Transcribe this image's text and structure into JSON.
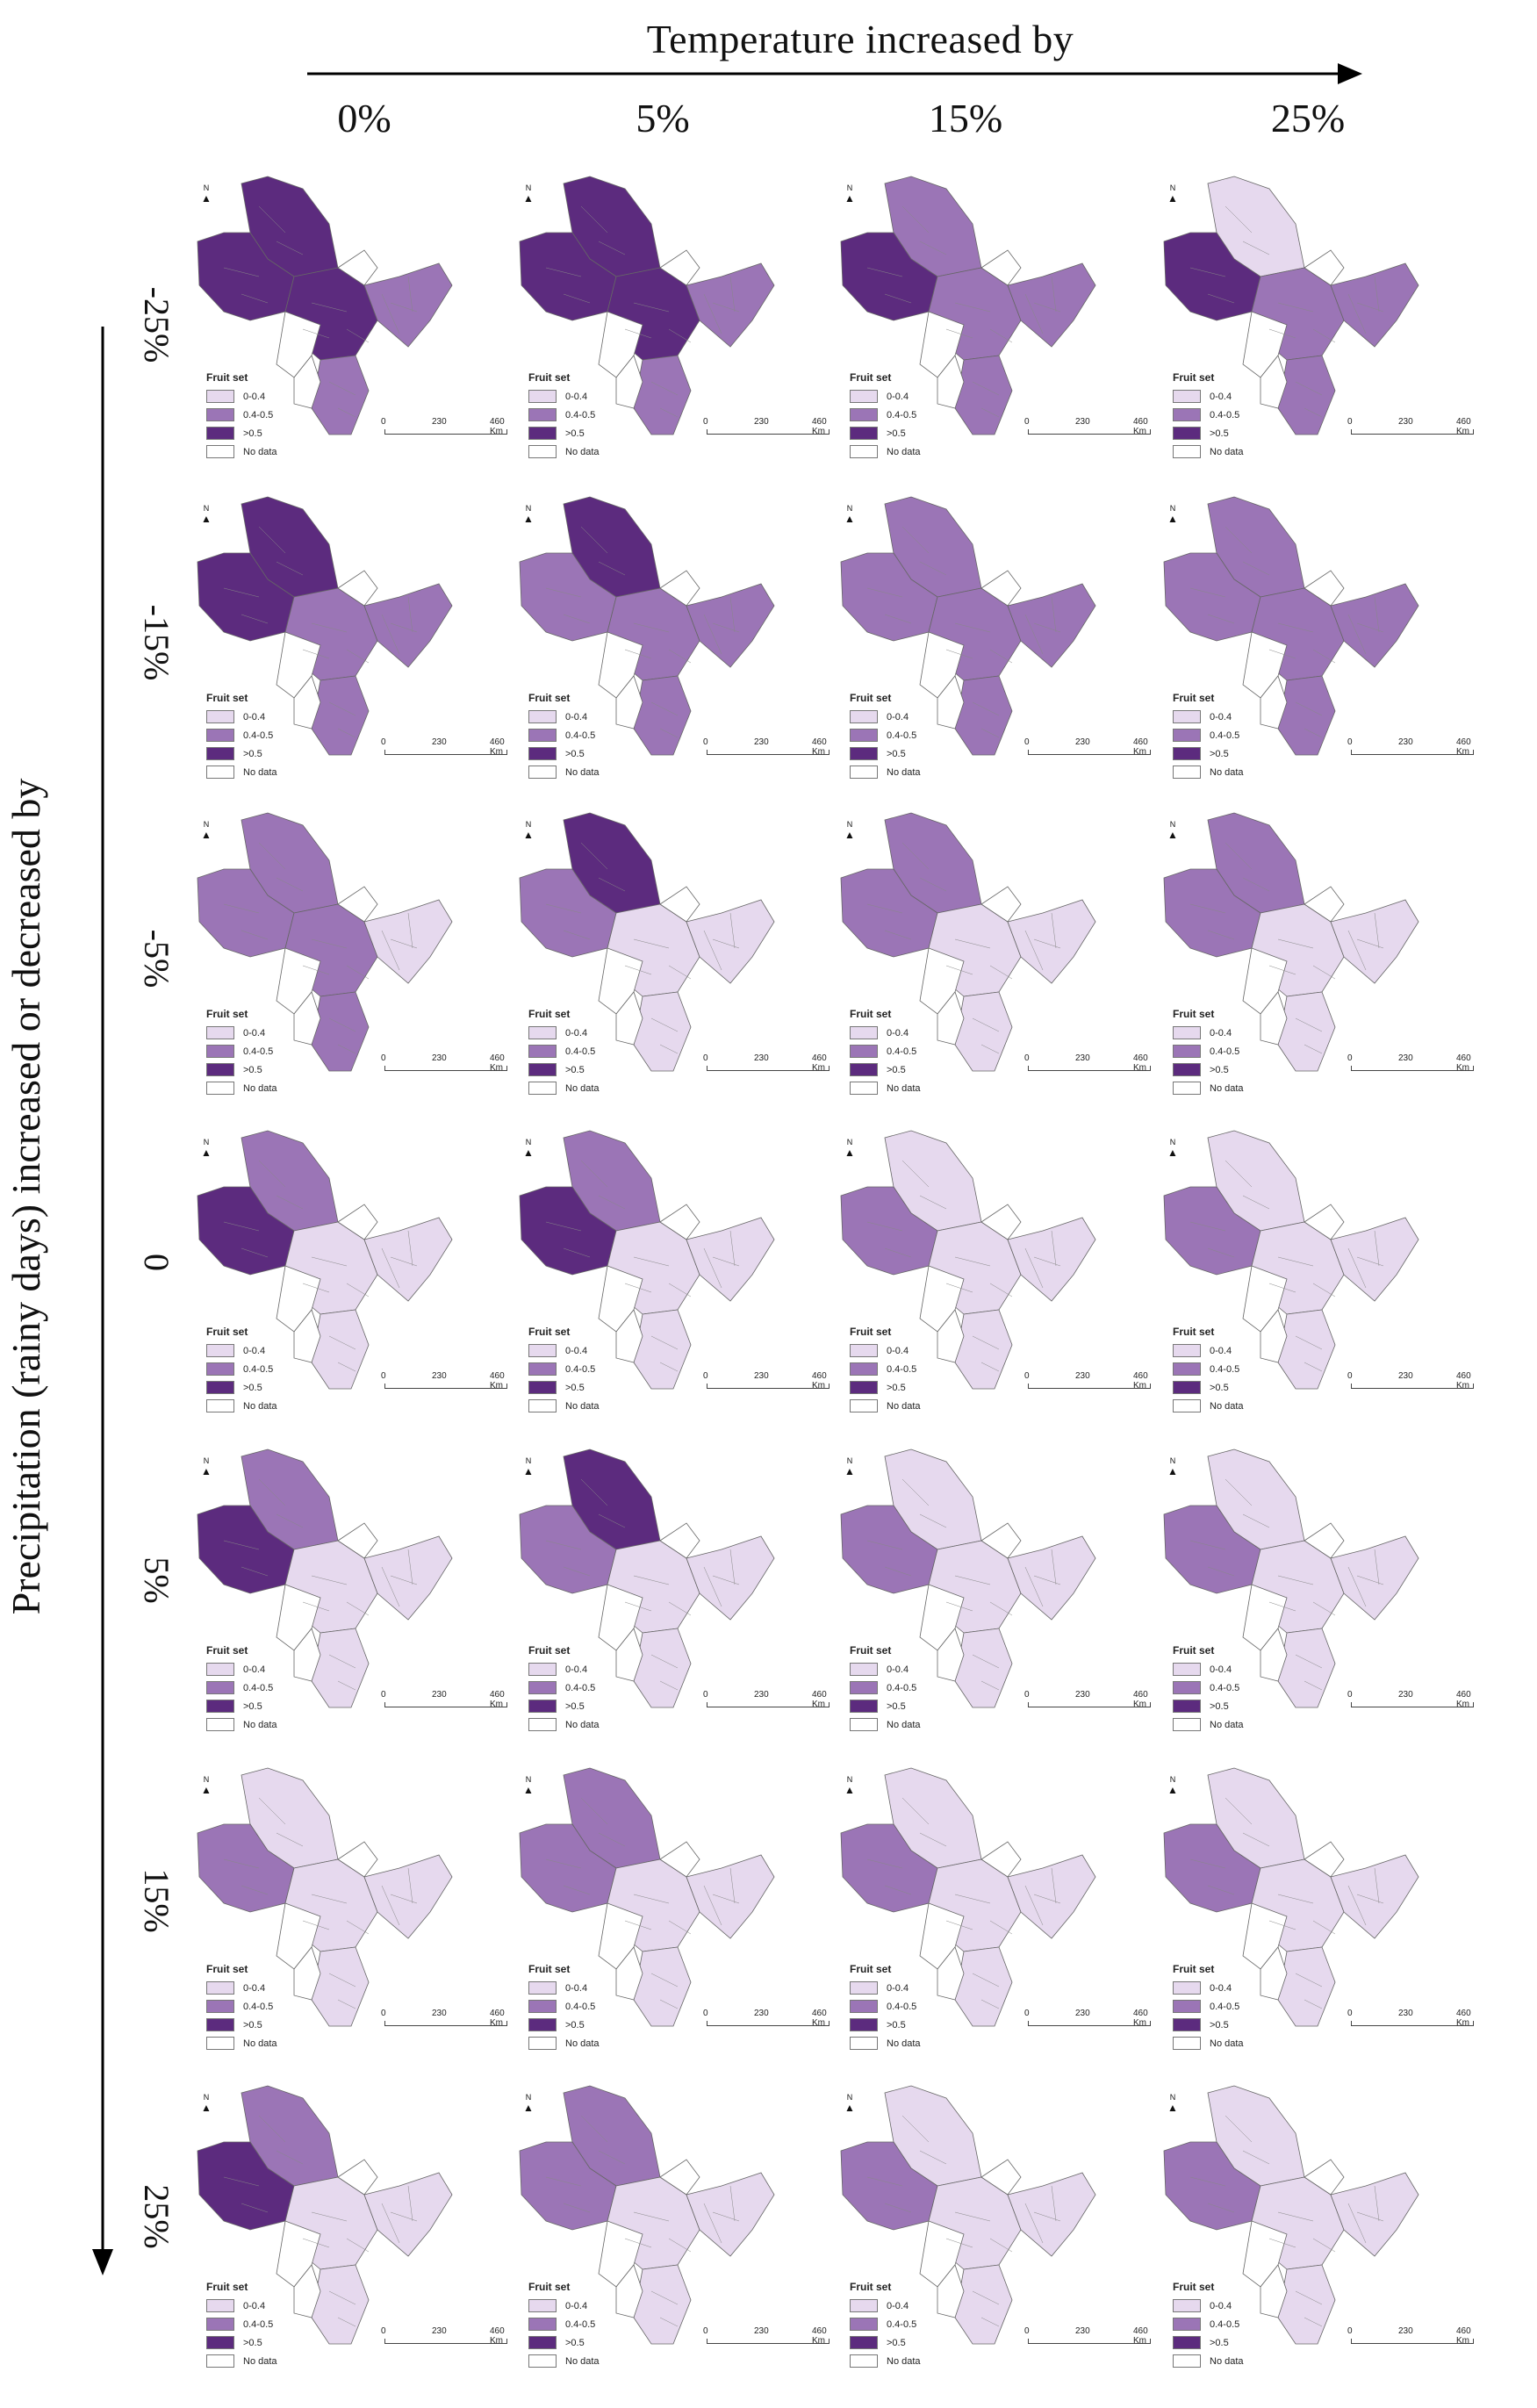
{
  "header": {
    "title": "Temperature increased by",
    "columns": [
      "0%",
      "5%",
      "15%",
      "25%"
    ]
  },
  "side": {
    "title": "Precipitation (rainy days) increased or decreased by",
    "rows": [
      "-25%",
      "-15%",
      "-5%",
      "0",
      "5%",
      "15%",
      "25%"
    ]
  },
  "legend": {
    "title": "Fruit set",
    "classes": [
      "0-0.4",
      "0.4-0.5",
      ">0.5",
      "No data"
    ],
    "colors": [
      "#e6d9ee",
      "#9b75b6",
      "#5c2b7e",
      "#ffffff"
    ]
  },
  "scale": {
    "ticks": [
      "0",
      "230",
      "460 Km"
    ]
  },
  "north_label": "N",
  "grid": [
    [
      {
        "n": 3,
        "w": 3,
        "c": 3,
        "s": 2,
        "e": 2
      },
      {
        "n": 3,
        "w": 3,
        "c": 3,
        "s": 2,
        "e": 2
      },
      {
        "n": 2,
        "w": 3,
        "c": 2,
        "s": 2,
        "e": 2
      },
      {
        "n": 1,
        "w": 3,
        "c": 2,
        "s": 2,
        "e": 2
      }
    ],
    [
      {
        "n": 3,
        "w": 3,
        "c": 2,
        "s": 2,
        "e": 2
      },
      {
        "n": 3,
        "w": 2,
        "c": 2,
        "s": 2,
        "e": 2
      },
      {
        "n": 2,
        "w": 2,
        "c": 2,
        "s": 2,
        "e": 2
      },
      {
        "n": 2,
        "w": 2,
        "c": 2,
        "s": 2,
        "e": 2
      }
    ],
    [
      {
        "n": 2,
        "w": 2,
        "c": 2,
        "s": 2,
        "e": 1
      },
      {
        "n": 3,
        "w": 2,
        "c": 1,
        "s": 1,
        "e": 1
      },
      {
        "n": 2,
        "w": 2,
        "c": 1,
        "s": 1,
        "e": 1
      },
      {
        "n": 2,
        "w": 2,
        "c": 1,
        "s": 1,
        "e": 1
      }
    ],
    [
      {
        "n": 2,
        "w": 3,
        "c": 1,
        "s": 1,
        "e": 1
      },
      {
        "n": 2,
        "w": 3,
        "c": 1,
        "s": 1,
        "e": 1
      },
      {
        "n": 1,
        "w": 2,
        "c": 1,
        "s": 1,
        "e": 1
      },
      {
        "n": 1,
        "w": 2,
        "c": 1,
        "s": 1,
        "e": 1
      }
    ],
    [
      {
        "n": 2,
        "w": 3,
        "c": 1,
        "s": 1,
        "e": 1
      },
      {
        "n": 3,
        "w": 2,
        "c": 1,
        "s": 1,
        "e": 1
      },
      {
        "n": 1,
        "w": 2,
        "c": 1,
        "s": 1,
        "e": 1
      },
      {
        "n": 1,
        "w": 2,
        "c": 1,
        "s": 1,
        "e": 1
      }
    ],
    [
      {
        "n": 1,
        "w": 2,
        "c": 1,
        "s": 1,
        "e": 1
      },
      {
        "n": 2,
        "w": 2,
        "c": 1,
        "s": 1,
        "e": 1
      },
      {
        "n": 1,
        "w": 2,
        "c": 1,
        "s": 1,
        "e": 1
      },
      {
        "n": 1,
        "w": 2,
        "c": 1,
        "s": 1,
        "e": 1
      }
    ],
    [
      {
        "n": 2,
        "w": 3,
        "c": 1,
        "s": 1,
        "e": 1
      },
      {
        "n": 2,
        "w": 2,
        "c": 1,
        "s": 1,
        "e": 1
      },
      {
        "n": 1,
        "w": 2,
        "c": 1,
        "s": 1,
        "e": 1
      },
      {
        "n": 1,
        "w": 2,
        "c": 1,
        "s": 1,
        "e": 1
      }
    ]
  ]
}
